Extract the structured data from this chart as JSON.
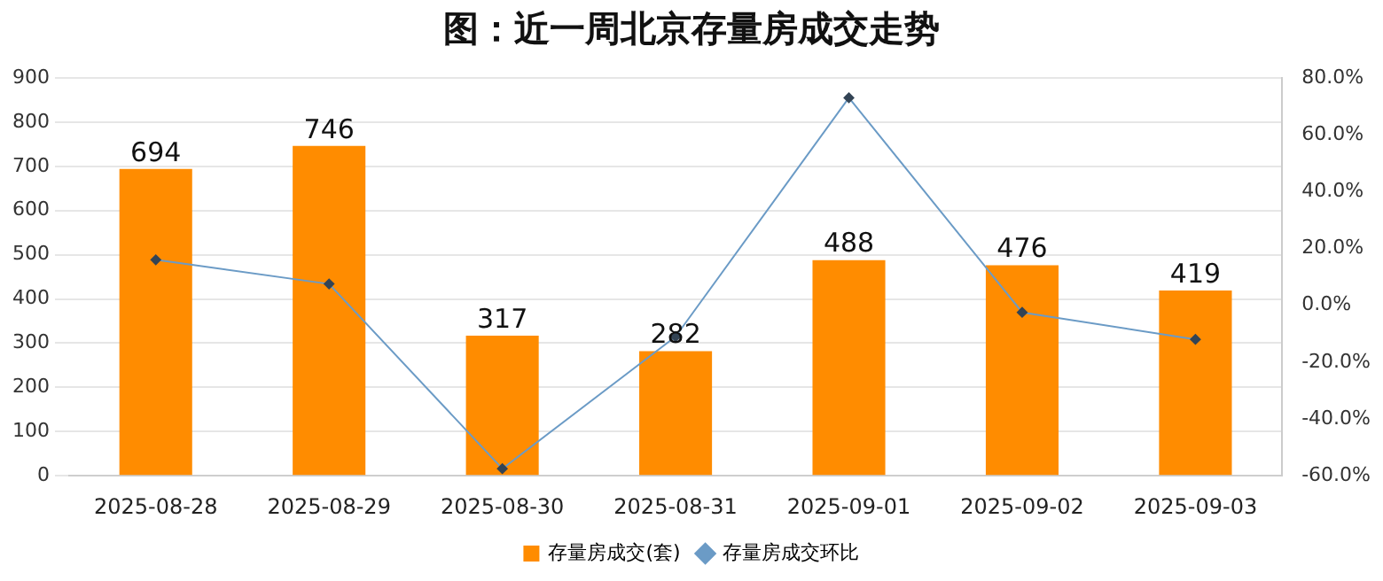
{
  "chart_data": {
    "type": "bar",
    "title": "图：近一周北京存量房成交走势",
    "categories": [
      "2025-08-28",
      "2025-08-29",
      "2025-08-30",
      "2025-08-31",
      "2025-09-01",
      "2025-09-02",
      "2025-09-03"
    ],
    "series": [
      {
        "name": "存量房成交(套)",
        "color": "#ff8c00",
        "values": [
          694,
          746,
          317,
          282,
          488,
          476,
          419
        ],
        "value_labels": [
          "694",
          "746",
          "317",
          "282",
          "488",
          "476",
          "419"
        ]
      },
      {
        "name": "存量房成交环比",
        "type": "line",
        "axis": "y2",
        "color": "#6b9bc6",
        "values": [
          16,
          7.5,
          -57.5,
          -11,
          73,
          -2.5,
          -12
        ]
      }
    ],
    "ylim": [
      0,
      900
    ],
    "yticks": [
      0,
      100,
      200,
      300,
      400,
      500,
      600,
      700,
      800,
      900
    ],
    "y2lim": [
      -60,
      80
    ],
    "y2ticks": [
      {
        "value": -60,
        "label": "-60.0%"
      },
      {
        "value": -40,
        "label": "-40.0%"
      },
      {
        "value": -20,
        "label": "-20.0%"
      },
      {
        "value": 0,
        "label": "0.0%"
      },
      {
        "value": 20,
        "label": "20.0%"
      },
      {
        "value": 40,
        "label": "40.0%"
      },
      {
        "value": 60,
        "label": "60.0%"
      },
      {
        "value": 80,
        "label": "80.0%"
      }
    ],
    "grid": "y",
    "legend": "bottom",
    "marker": "diamond",
    "line_style": "solid"
  }
}
